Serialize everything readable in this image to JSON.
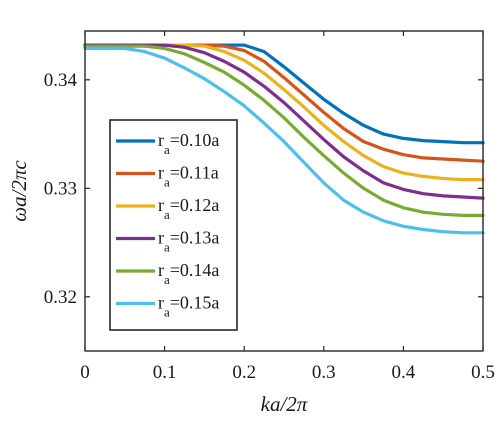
{
  "chart_data": {
    "type": "line",
    "xlabel": "ka/2π",
    "ylabel": "ωa/2πc",
    "xlim": [
      0,
      0.5
    ],
    "ylim": [
      0.315,
      0.3445
    ],
    "xticks": [
      0,
      0.1,
      0.2,
      0.3,
      0.4,
      0.5
    ],
    "xtick_labels": [
      "0",
      "0.1",
      "0.2",
      "0.3",
      "0.4",
      "0.5"
    ],
    "yticks": [
      0.32,
      0.33,
      0.34
    ],
    "ytick_labels": [
      "0.32",
      "0.33",
      "0.34"
    ],
    "grid": false,
    "legend_position": "lower-left",
    "x": [
      0,
      0.025,
      0.05,
      0.075,
      0.1,
      0.125,
      0.15,
      0.175,
      0.2,
      0.225,
      0.25,
      0.275,
      0.3,
      0.325,
      0.35,
      0.375,
      0.4,
      0.425,
      0.45,
      0.475,
      0.5
    ],
    "series": [
      {
        "legend_main": "r",
        "legend_sub": "a",
        "legend_rest": "=0.10a",
        "color": "#0072BD",
        "values": [
          0.3432,
          0.3432,
          0.3432,
          0.3432,
          0.3432,
          0.3432,
          0.3432,
          0.3432,
          0.3432,
          0.3426,
          0.3412,
          0.3397,
          0.3382,
          0.3369,
          0.3358,
          0.335,
          0.3346,
          0.3344,
          0.3343,
          0.3342,
          0.3342
        ]
      },
      {
        "legend_main": "r",
        "legend_sub": "a",
        "legend_rest": "=0.11a",
        "color": "#D95319",
        "values": [
          0.3432,
          0.3432,
          0.3432,
          0.3432,
          0.3432,
          0.3432,
          0.3432,
          0.3431,
          0.3427,
          0.3417,
          0.3402,
          0.3386,
          0.337,
          0.3355,
          0.3343,
          0.3336,
          0.3331,
          0.3328,
          0.3327,
          0.3326,
          0.3325
        ]
      },
      {
        "legend_main": "r",
        "legend_sub": "a",
        "legend_rest": "=0.12a",
        "color": "#EDB120",
        "values": [
          0.3432,
          0.3432,
          0.3432,
          0.3432,
          0.3432,
          0.3432,
          0.3431,
          0.3426,
          0.3418,
          0.3406,
          0.3391,
          0.3375,
          0.3358,
          0.3343,
          0.333,
          0.332,
          0.3314,
          0.3311,
          0.3309,
          0.3308,
          0.3308
        ]
      },
      {
        "legend_main": "r",
        "legend_sub": "a",
        "legend_rest": "=0.13a",
        "color": "#7E2F8E",
        "values": [
          0.3432,
          0.3432,
          0.3432,
          0.3432,
          0.3432,
          0.343,
          0.3425,
          0.3417,
          0.3407,
          0.3394,
          0.3379,
          0.3362,
          0.3345,
          0.3329,
          0.3316,
          0.3305,
          0.3299,
          0.3295,
          0.3293,
          0.3292,
          0.3291
        ]
      },
      {
        "legend_main": "r",
        "legend_sub": "a",
        "legend_rest": "=0.14a",
        "color": "#77AC30",
        "values": [
          0.3431,
          0.3431,
          0.3431,
          0.3431,
          0.3429,
          0.3424,
          0.3416,
          0.3407,
          0.3395,
          0.3381,
          0.3365,
          0.3347,
          0.333,
          0.3314,
          0.33,
          0.3289,
          0.3282,
          0.3278,
          0.3276,
          0.3275,
          0.3275
        ]
      },
      {
        "legend_main": "r",
        "legend_sub": "a",
        "legend_rest": "=0.15a",
        "color": "#4DBEEE",
        "values": [
          0.3429,
          0.3429,
          0.3429,
          0.3426,
          0.342,
          0.3411,
          0.3401,
          0.3389,
          0.3376,
          0.336,
          0.3343,
          0.3324,
          0.3305,
          0.3289,
          0.3278,
          0.327,
          0.3265,
          0.3262,
          0.326,
          0.3259,
          0.3259
        ]
      }
    ]
  }
}
